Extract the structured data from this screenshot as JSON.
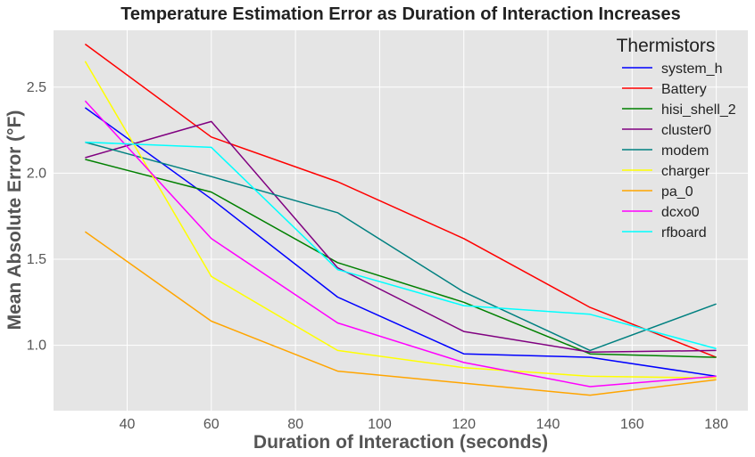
{
  "chart_data": {
    "type": "line",
    "title": "Temperature Estimation Error as Duration of Interaction Increases",
    "xlabel": "Duration of Interaction (seconds)",
    "ylabel": "Mean Absolute Error (°F)",
    "xlim": [
      22.5,
      187.5
    ],
    "ylim": [
      0.62,
      2.83
    ],
    "xticks": [
      40,
      60,
      80,
      100,
      120,
      140,
      160,
      180
    ],
    "xtick_labels": [
      "40",
      "60",
      "80",
      "100",
      "120",
      "140",
      "160",
      "180"
    ],
    "yticks": [
      1.0,
      1.5,
      2.0,
      2.5
    ],
    "ytick_labels": [
      "1.0",
      "1.5",
      "2.0",
      "2.5"
    ],
    "grid": true,
    "background": "#e5e5e5",
    "legend": {
      "title": "Thermistors",
      "position": "top-right"
    },
    "x": [
      30,
      60,
      90,
      120,
      150,
      180
    ],
    "series": [
      {
        "name": "system_h",
        "color": "#0000ff",
        "values": [
          2.38,
          1.85,
          1.28,
          0.95,
          0.93,
          0.82
        ]
      },
      {
        "name": "Battery",
        "color": "#ff0000",
        "values": [
          2.75,
          2.21,
          1.95,
          1.62,
          1.22,
          0.93
        ]
      },
      {
        "name": "hisi_shell_2",
        "color": "#008000",
        "values": [
          2.08,
          1.89,
          1.48,
          1.25,
          0.95,
          0.93
        ]
      },
      {
        "name": "cluster0",
        "color": "#800080",
        "values": [
          2.09,
          2.3,
          1.45,
          1.08,
          0.96,
          0.97
        ]
      },
      {
        "name": "modem",
        "color": "#008080",
        "values": [
          2.18,
          1.98,
          1.77,
          1.31,
          0.97,
          1.24
        ]
      },
      {
        "name": "charger",
        "color": "#ffff00",
        "values": [
          2.65,
          1.4,
          0.97,
          0.87,
          0.82,
          0.81
        ]
      },
      {
        "name": "pa_0",
        "color": "#ffa500",
        "values": [
          1.66,
          1.14,
          0.85,
          0.78,
          0.71,
          0.8
        ]
      },
      {
        "name": "dcxo0",
        "color": "#ff00ff",
        "values": [
          2.42,
          1.62,
          1.13,
          0.9,
          0.76,
          0.82
        ]
      },
      {
        "name": "rfboard",
        "color": "#00ffff",
        "values": [
          2.18,
          2.15,
          1.44,
          1.23,
          1.18,
          0.98
        ]
      }
    ]
  }
}
